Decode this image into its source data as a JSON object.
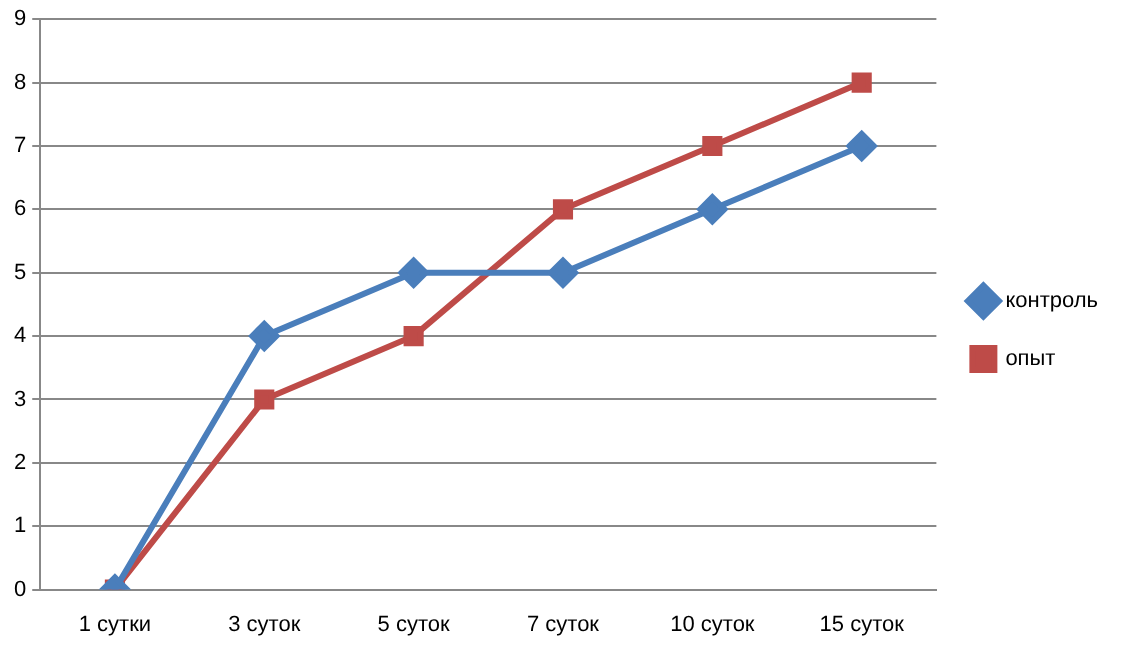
{
  "chart_data": {
    "type": "line",
    "categories": [
      "1 сутки",
      "3 суток",
      "5 суток",
      "7 суток",
      "10 суток",
      "15 суток"
    ],
    "series": [
      {
        "name": "контроль",
        "color": "#4a7ebb",
        "values": [
          0,
          4,
          5,
          5,
          6,
          7
        ],
        "marker": "diamond"
      },
      {
        "name": "опыт",
        "color": "#be4b48",
        "values": [
          0,
          3,
          4,
          6,
          7,
          8
        ],
        "marker": "square"
      }
    ],
    "ylim": [
      0,
      9
    ],
    "yticks": [
      0,
      1,
      2,
      3,
      4,
      5,
      6,
      7,
      8,
      9
    ],
    "grid": "y",
    "legend": "right",
    "line_style": "solid"
  }
}
